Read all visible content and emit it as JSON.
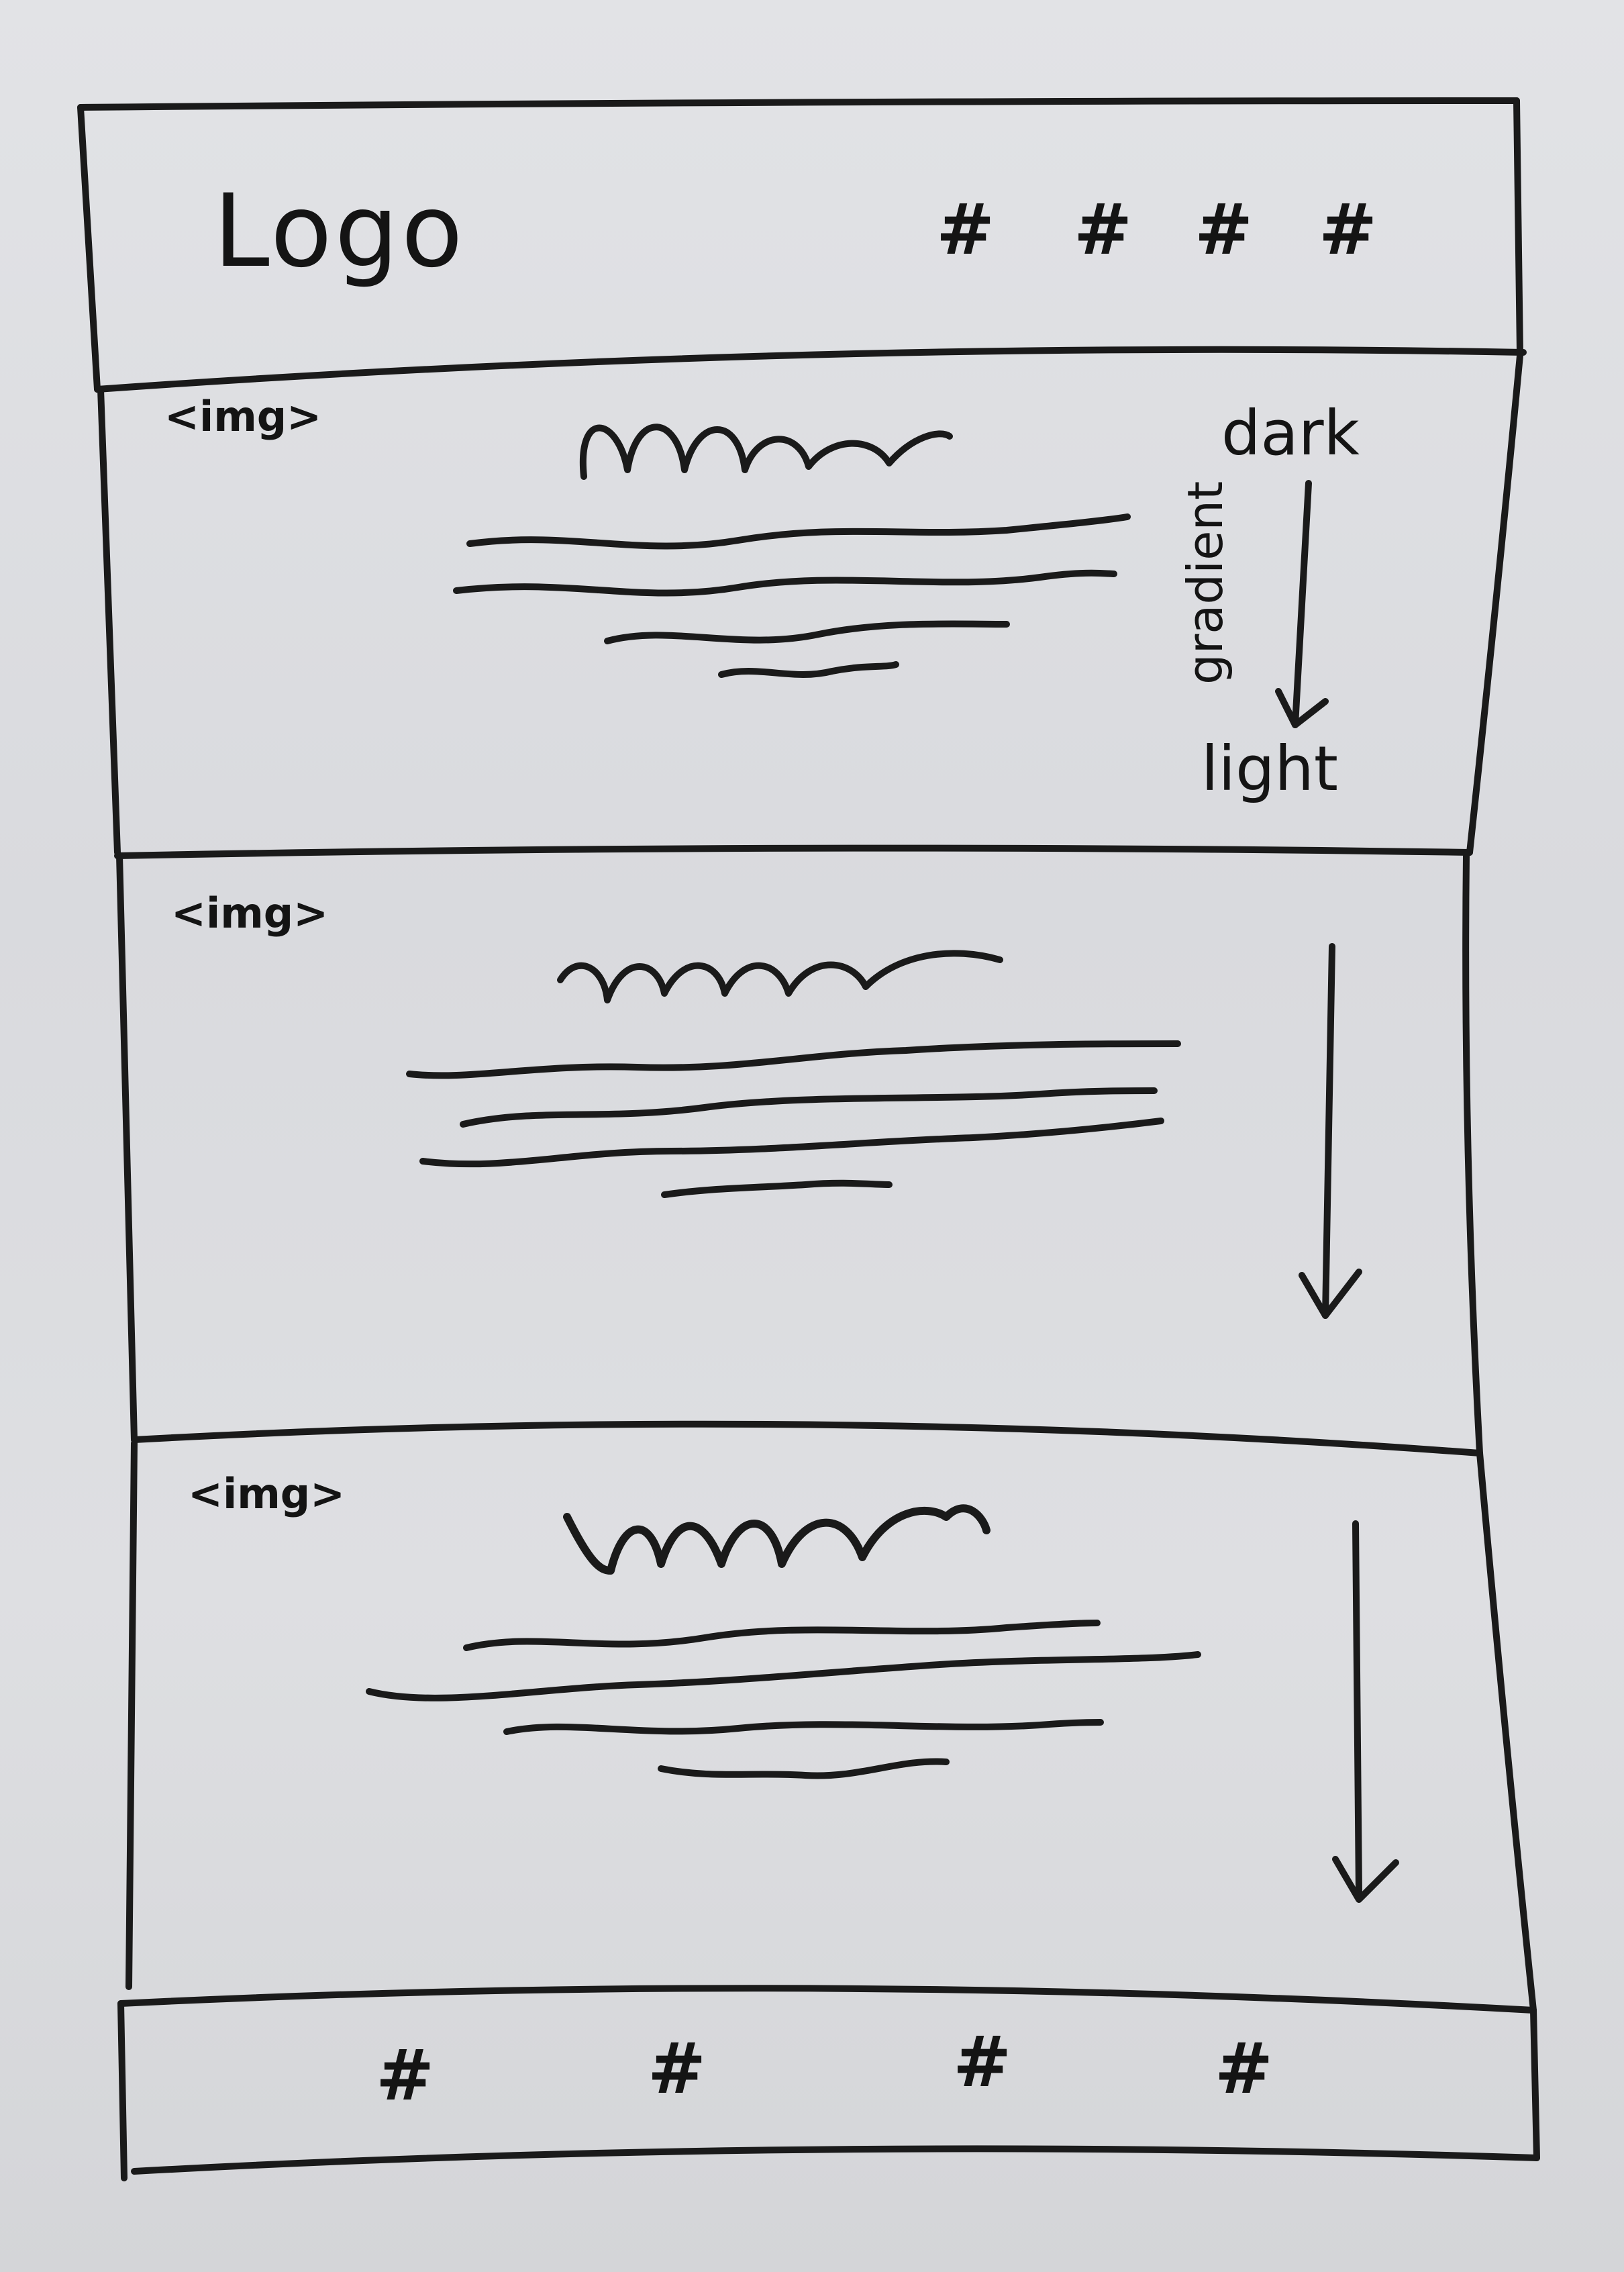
{
  "header": {
    "logo": "Logo",
    "nav_items": [
      "#",
      "#",
      "#",
      "#"
    ]
  },
  "sections": [
    {
      "img_tag": "<img>",
      "gradient_top": "dark",
      "gradient_label": "gradient",
      "gradient_bottom": "light"
    },
    {
      "img_tag": "<img>"
    },
    {
      "img_tag": "<img>"
    }
  ],
  "footer": {
    "nav_items": [
      "#",
      "#",
      "#",
      "#"
    ]
  },
  "colors": {
    "ink": "#1a1a1a",
    "board": "#dcdcdf"
  }
}
